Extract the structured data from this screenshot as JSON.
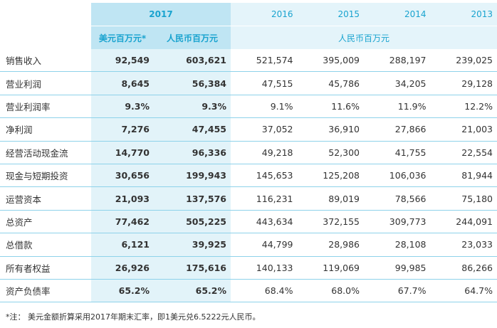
{
  "header": {
    "year_2017": "2017",
    "years": [
      "2016",
      "2015",
      "2014",
      "2013"
    ],
    "unit_usd": "美元百万元*",
    "unit_rmb_2017": "人民币百万元",
    "unit_rmb_history": "人民币百万元"
  },
  "rows": [
    {
      "label": "销售收入",
      "usd": "92,549",
      "rmb": "603,621",
      "y2016": "521,574",
      "y2015": "395,009",
      "y2014": "288,197",
      "y2013": "239,025"
    },
    {
      "label": "营业利润",
      "usd": "8,645",
      "rmb": "56,384",
      "y2016": "47,515",
      "y2015": "45,786",
      "y2014": "34,205",
      "y2013": "29,128"
    },
    {
      "label": "营业利润率",
      "usd": "9.3%",
      "rmb": "9.3%",
      "y2016": "9.1%",
      "y2015": "11.6%",
      "y2014": "11.9%",
      "y2013": "12.2%"
    },
    {
      "label": "净利润",
      "usd": "7,276",
      "rmb": "47,455",
      "y2016": "37,052",
      "y2015": "36,910",
      "y2014": "27,866",
      "y2013": "21,003"
    },
    {
      "label": "经营活动现金流",
      "usd": "14,770",
      "rmb": "96,336",
      "y2016": "49,218",
      "y2015": "52,300",
      "y2014": "41,755",
      "y2013": "22,554"
    },
    {
      "label": "现金与短期投资",
      "usd": "30,656",
      "rmb": "199,943",
      "y2016": "145,653",
      "y2015": "125,208",
      "y2014": "106,036",
      "y2013": "81,944"
    },
    {
      "label": "运营资本",
      "usd": "21,093",
      "rmb": "137,576",
      "y2016": "116,231",
      "y2015": "89,019",
      "y2014": "78,566",
      "y2013": "75,180"
    },
    {
      "label": "总资产",
      "usd": "77,462",
      "rmb": "505,225",
      "y2016": "443,634",
      "y2015": "372,155",
      "y2014": "309,773",
      "y2013": "244,091"
    },
    {
      "label": "总借款",
      "usd": "6,121",
      "rmb": "39,925",
      "y2016": "44,799",
      "y2015": "28,986",
      "y2014": "28,108",
      "y2013": "23,033"
    },
    {
      "label": "所有者权益",
      "usd": "26,926",
      "rmb": "175,616",
      "y2016": "140,133",
      "y2015": "119,069",
      "y2014": "99,985",
      "y2013": "86,266"
    },
    {
      "label": "资产负债率",
      "usd": "65.2%",
      "rmb": "65.2%",
      "y2016": "68.4%",
      "y2015": "68.0%",
      "y2014": "67.7%",
      "y2013": "64.7%"
    }
  ],
  "footnote": "*注：  美元金额折算采用2017年期末汇率，即1美元兑6.5222元人民币。",
  "colors": {
    "accent": "#19a3cf",
    "header_2017_bg": "#bfe5f3",
    "header_years_bg": "#e4f4fa",
    "col_2017_bg": "#e2f3f9",
    "row_divider": "#8ed2ea"
  }
}
